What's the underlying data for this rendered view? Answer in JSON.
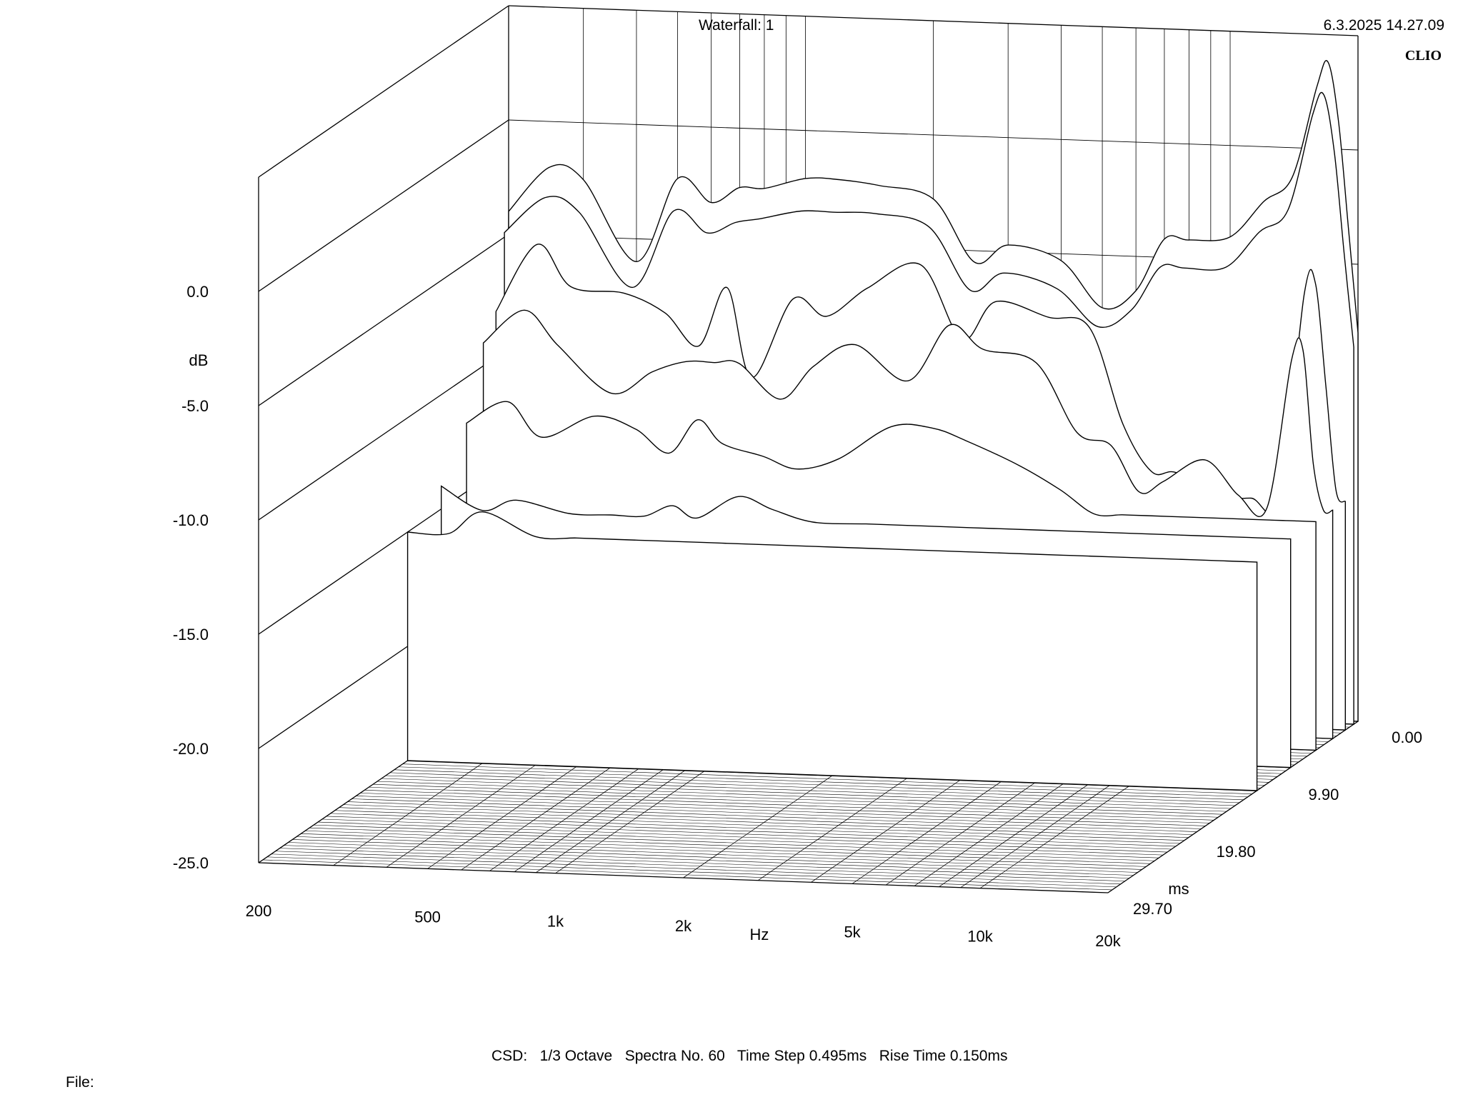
{
  "header": {
    "title": "Waterfall: 1",
    "datetime": "6.3.2025 14.27.09",
    "brand": "CLIO"
  },
  "footer": {
    "settings": "CSD:   1/3 Octave   Spectra No. 60   Time Step 0.495ms   Rise Time 0.150ms",
    "file_label": "File:"
  },
  "colors": {
    "line": "#000000",
    "background": "#ffffff"
  },
  "chart_data": {
    "type": "waterfall",
    "title": "Waterfall: 1",
    "ylabel": "dB",
    "xlabel": "Hz",
    "zlabel": "ms",
    "x_scale": "log",
    "xlim": [
      200,
      20000
    ],
    "ylim": [
      -25,
      0
    ],
    "zlim": [
      0,
      29.7
    ],
    "y_ticks": [
      "0.0",
      "-5.0",
      "-10.0",
      "-15.0",
      "-20.0",
      "-25.0"
    ],
    "x_ticks": [
      "200",
      "500",
      "1k",
      "2k",
      "5k",
      "10k",
      "20k"
    ],
    "z_ticks": [
      "0.00",
      "9.90",
      "19.80",
      "29.70"
    ],
    "spectra_count": 60,
    "time_step_ms": 0.495,
    "rise_time_ms": 0.15,
    "series": [
      {
        "time_ms": 0.0,
        "x": [
          200,
          250,
          300,
          400,
          500,
          600,
          700,
          800,
          1000,
          1200,
          1500,
          2000,
          2500,
          3000,
          4000,
          5000,
          6000,
          7000,
          8000,
          10000,
          12000,
          14000,
          16000,
          17000,
          18000,
          19000,
          20000
        ],
        "y": [
          -4.0,
          -2.0,
          -2.5,
          -6.0,
          -2.3,
          -3.3,
          -2.6,
          -2.6,
          -2.1,
          -2.1,
          -2.3,
          -2.8,
          -5.5,
          -4.7,
          -5.3,
          -7.3,
          -6.5,
          -4.2,
          -4.2,
          -4.0,
          -2.4,
          -1.3,
          2.7,
          3.8,
          1.2,
          -3.5,
          -8.0
        ]
      },
      {
        "time_ms": 0.5,
        "x": [
          200,
          250,
          300,
          400,
          500,
          600,
          700,
          800,
          1000,
          1200,
          1500,
          2000,
          2500,
          3000,
          4000,
          5000,
          6000,
          7000,
          8000,
          10000,
          12000,
          14000,
          16000,
          17000,
          18000,
          19000,
          20000
        ],
        "y": [
          -4.8,
          -3.2,
          -3.8,
          -7.0,
          -3.6,
          -4.5,
          -4.0,
          -3.8,
          -3.4,
          -3.4,
          -3.4,
          -3.9,
          -6.6,
          -5.8,
          -6.4,
          -8.0,
          -7.2,
          -5.3,
          -5.3,
          -5.2,
          -3.6,
          -2.6,
          1.6,
          2.5,
          0.0,
          -4.5,
          -8.5
        ]
      },
      {
        "time_ms": 1.5,
        "x": [
          200,
          250,
          300,
          400,
          500,
          600,
          700,
          800,
          1000,
          1200,
          1500,
          2000,
          2500,
          3000,
          4000,
          5000,
          6000,
          7000,
          8000,
          10000,
          12000,
          14000,
          16000,
          17000,
          18000,
          19000,
          20000
        ],
        "y": [
          -8.0,
          -5.0,
          -6.8,
          -7.0,
          -7.8,
          -9.2,
          -6.6,
          -10.5,
          -7.0,
          -7.7,
          -6.4,
          -5.3,
          -8.5,
          -6.8,
          -7.4,
          -7.8,
          -12.0,
          -14.0,
          -14.0,
          -15.0,
          -15.0,
          -15.0,
          -6.0,
          -5.5,
          -10.0,
          -14.5,
          -15.0
        ]
      },
      {
        "time_ms": 3.0,
        "x": [
          200,
          250,
          300,
          400,
          500,
          600,
          700,
          800,
          1000,
          1200,
          1500,
          2000,
          2500,
          3000,
          4000,
          5000,
          6000,
          7000,
          8000,
          10000,
          12000,
          14000,
          16000,
          17000,
          18000,
          19000,
          20000
        ],
        "y": [
          -9.0,
          -7.5,
          -9.0,
          -11.0,
          -10.0,
          -9.5,
          -9.5,
          -9.5,
          -11.0,
          -9.5,
          -8.5,
          -10.0,
          -7.5,
          -8.5,
          -9.0,
          -12.0,
          -12.5,
          -14.5,
          -14.0,
          -13.0,
          -14.5,
          -15.0,
          -8.5,
          -8.0,
          -13.0,
          -15.0,
          -15.0
        ]
      },
      {
        "time_ms": 5.0,
        "x": [
          200,
          250,
          300,
          400,
          500,
          600,
          700,
          800,
          1000,
          1200,
          1500,
          2000,
          2500,
          3000,
          4000,
          5000,
          6000,
          7000,
          8000,
          10000,
          12000,
          14000,
          16000,
          17000,
          18000,
          19000,
          20000
        ],
        "y": [
          -12.0,
          -11.0,
          -12.5,
          -11.5,
          -12.0,
          -13.0,
          -11.5,
          -12.5,
          -13.0,
          -13.5,
          -13.0,
          -11.5,
          -11.5,
          -12.0,
          -13.0,
          -14.0,
          -15.0,
          -15.0,
          -15.0,
          -15.0,
          -15.0,
          -15.0,
          -15.0,
          -15.0,
          -15.0,
          -15.0,
          -15.0
        ]
      },
      {
        "time_ms": 8.0,
        "x": [
          200,
          250,
          300,
          400,
          500,
          600,
          700,
          800,
          1000,
          1200,
          1500,
          2000,
          2500,
          3000,
          4000,
          5000,
          6000,
          7000,
          8000,
          10000,
          12000,
          14000,
          16000,
          17000,
          18000,
          19000,
          20000
        ],
        "y": [
          -14.0,
          -15.0,
          -14.5,
          -15.0,
          -15.0,
          -15.0,
          -14.5,
          -15.0,
          -14.0,
          -14.5,
          -15.0,
          -15.0,
          -15.0,
          -15.0,
          -15.0,
          -15.0,
          -15.0,
          -15.0,
          -15.0,
          -15.0,
          -15.0,
          -15.0,
          -15.0,
          -15.0,
          -15.0,
          -15.0,
          -15.0
        ]
      },
      {
        "time_ms": 12.0,
        "x": [
          200,
          250,
          300,
          400,
          500,
          600,
          700,
          800,
          1000,
          1200,
          1500,
          2000,
          2500,
          3000,
          4000,
          5000,
          6000,
          7000,
          8000,
          10000,
          12000,
          14000,
          16000,
          17000,
          18000,
          19000,
          20000
        ],
        "y": [
          -15.0,
          -15.0,
          -14.0,
          -15.0,
          -15.0,
          -15.0,
          -15.0,
          -15.0,
          -15.0,
          -15.0,
          -15.0,
          -15.0,
          -15.0,
          -15.0,
          -15.0,
          -15.0,
          -15.0,
          -15.0,
          -15.0,
          -15.0,
          -15.0,
          -15.0,
          -15.0,
          -15.0,
          -15.0,
          -15.0,
          -15.0
        ]
      }
    ]
  }
}
